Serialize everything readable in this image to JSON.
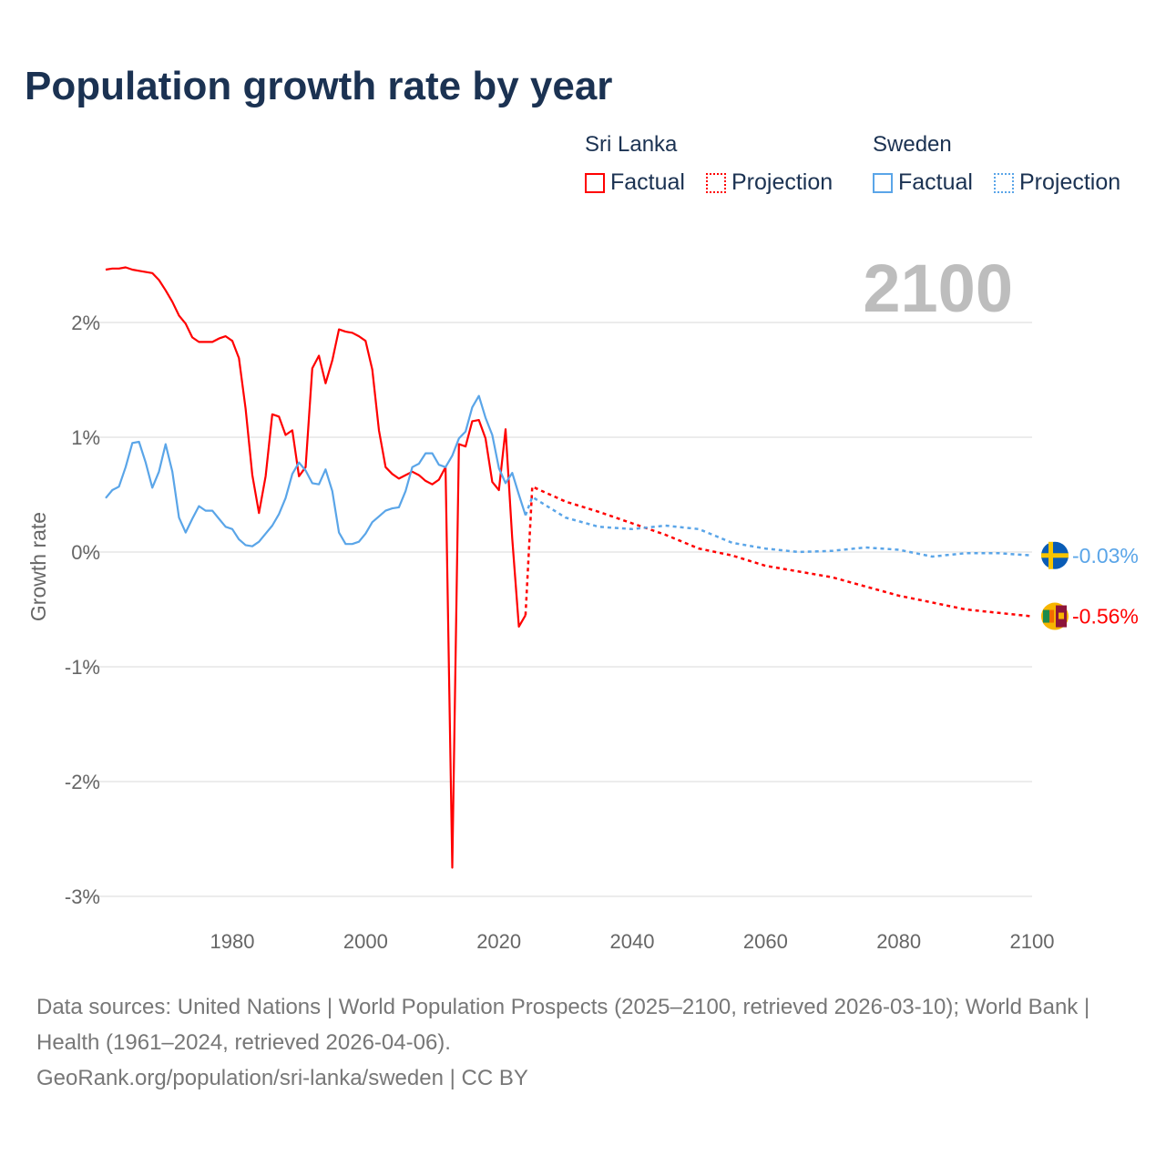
{
  "title": "Population growth rate by year",
  "legend": {
    "groups": [
      {
        "name": "Sri Lanka",
        "color": "#ff0000",
        "factual": "Factual",
        "projection": "Projection"
      },
      {
        "name": "Sweden",
        "color": "#5aa5e8",
        "factual": "Factual",
        "projection": "Projection"
      }
    ]
  },
  "year_label": "2100",
  "end_labels": {
    "sweden": "-0.03%",
    "sri_lanka": "-0.56%"
  },
  "footer": {
    "sources": "Data sources: United Nations | World Population Prospects (2025–2100, retrieved 2026-03-10); World Bank | Health (1961–2024, retrieved 2026-04-06).",
    "credit": "GeoRank.org/population/sri-lanka/sweden | CC BY"
  },
  "chart_data": {
    "type": "line",
    "title": "Population growth rate by year",
    "xlabel": "",
    "ylabel": "Growth rate",
    "xlim": [
      1961,
      2100
    ],
    "ylim": [
      -3.1,
      2.6
    ],
    "xticks": [
      1980,
      2000,
      2020,
      2040,
      2060,
      2080,
      2100
    ],
    "xtick_labels": [
      "1980",
      "2000",
      "2020",
      "2040",
      "2060",
      "2080",
      "2100"
    ],
    "yticks": [
      2,
      1,
      0,
      -1,
      -2,
      -3
    ],
    "ytick_labels": [
      "2%",
      "1%",
      "0%",
      "-1%",
      "-2%",
      "-3%"
    ],
    "grid": true,
    "legend_position": "top-right",
    "series": [
      {
        "name": "Sri Lanka Factual",
        "color": "#ff0000",
        "style": "solid",
        "x_start": 1961,
        "values": [
          2.46,
          2.47,
          2.47,
          2.48,
          2.46,
          2.45,
          2.44,
          2.43,
          2.37,
          2.28,
          2.18,
          2.06,
          1.99,
          1.87,
          1.83,
          1.83,
          1.83,
          1.86,
          1.88,
          1.84,
          1.69,
          1.25,
          0.67,
          0.34,
          0.66,
          1.2,
          1.18,
          1.02,
          1.06,
          0.66,
          0.74,
          1.6,
          1.71,
          1.47,
          1.67,
          1.94,
          1.92,
          1.91,
          1.88,
          1.84,
          1.59,
          1.06,
          0.74,
          0.68,
          0.64,
          0.67,
          0.7,
          0.67,
          0.62,
          0.59,
          0.63,
          0.74,
          -2.75,
          0.94,
          0.92,
          1.14,
          1.15,
          0.99,
          0.61,
          0.54,
          1.07,
          0.12,
          -0.65,
          -0.55
        ]
      },
      {
        "name": "Sri Lanka Projection",
        "color": "#ff0000",
        "style": "dotted",
        "x": [
          2024,
          2025,
          2030,
          2035,
          2040,
          2045,
          2050,
          2055,
          2060,
          2065,
          2070,
          2075,
          2080,
          2085,
          2090,
          2095,
          2100
        ],
        "values": [
          -0.55,
          0.57,
          0.44,
          0.35,
          0.25,
          0.15,
          0.03,
          -0.03,
          -0.12,
          -0.17,
          -0.22,
          -0.3,
          -0.38,
          -0.44,
          -0.5,
          -0.53,
          -0.56
        ]
      },
      {
        "name": "Sweden Factual",
        "color": "#5aa5e8",
        "style": "solid",
        "x_start": 1961,
        "values": [
          0.47,
          0.54,
          0.57,
          0.74,
          0.95,
          0.96,
          0.78,
          0.56,
          0.7,
          0.94,
          0.7,
          0.3,
          0.17,
          0.29,
          0.4,
          0.36,
          0.36,
          0.29,
          0.22,
          0.2,
          0.11,
          0.06,
          0.05,
          0.09,
          0.16,
          0.23,
          0.33,
          0.47,
          0.68,
          0.78,
          0.71,
          0.6,
          0.59,
          0.72,
          0.53,
          0.17,
          0.07,
          0.07,
          0.09,
          0.16,
          0.26,
          0.31,
          0.36,
          0.38,
          0.39,
          0.53,
          0.74,
          0.77,
          0.86,
          0.86,
          0.76,
          0.74,
          0.84,
          0.99,
          1.05,
          1.26,
          1.36,
          1.17,
          1.02,
          0.73,
          0.6,
          0.69,
          0.5,
          0.32
        ]
      },
      {
        "name": "Sweden Projection",
        "color": "#5aa5e8",
        "style": "dotted",
        "x": [
          2024,
          2025,
          2030,
          2035,
          2040,
          2045,
          2050,
          2055,
          2060,
          2065,
          2070,
          2075,
          2080,
          2085,
          2090,
          2095,
          2100
        ],
        "values": [
          0.32,
          0.48,
          0.3,
          0.22,
          0.2,
          0.23,
          0.2,
          0.08,
          0.03,
          0.0,
          0.01,
          0.04,
          0.02,
          -0.04,
          -0.01,
          -0.01,
          -0.03
        ]
      }
    ]
  }
}
